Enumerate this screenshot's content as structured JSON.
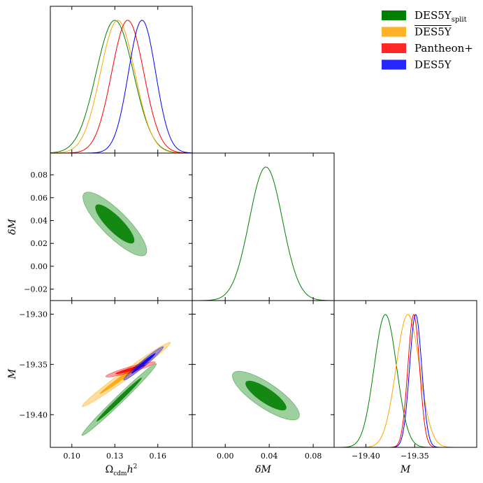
{
  "chart_data": {
    "type": "corner",
    "parameters": [
      {
        "key": "om",
        "label": "Ω_cdm h²",
        "range": [
          0.085,
          0.184
        ],
        "ticks": [
          0.1,
          0.13,
          0.16
        ],
        "tick_labels": [
          "0.10",
          "0.13",
          "0.16"
        ]
      },
      {
        "key": "dm",
        "label": "δM",
        "range": [
          -0.03,
          0.099
        ],
        "ticks": [
          -0.02,
          0.0,
          0.02,
          0.04,
          0.06,
          0.08
        ],
        "tick_labels_y": [
          "−0.02",
          "0.00",
          "0.02",
          "0.04",
          "0.06",
          "0.08"
        ],
        "ticks_x": [
          0.0,
          0.04,
          0.08
        ],
        "tick_labels_x": [
          "0.00",
          "0.04",
          "0.08"
        ]
      },
      {
        "key": "M",
        "label": "M",
        "range": [
          -19.4325,
          -19.2865
        ],
        "ticks": [
          -19.3,
          -19.35,
          -19.4
        ],
        "tick_labels_y": [
          "−19.30",
          "−19.35",
          "−19.40"
        ],
        "ticks_x": [
          -19.4,
          -19.35
        ],
        "tick_labels_x": [
          "−19.40",
          "−19.35"
        ]
      }
    ],
    "legend": {
      "placement": "top-right",
      "entries": [
        {
          "name": "DES5Y",
          "subscript": "split",
          "overline": false,
          "color": "#008000"
        },
        {
          "name": "DES5Y",
          "subscript": "",
          "overline": true,
          "color": "#FFA500"
        },
        {
          "name": "Pantheon+",
          "subscript": "",
          "overline": false,
          "color": "#FF0000"
        },
        {
          "name": "DES5Y",
          "subscript": "",
          "overline": false,
          "color": "#0000FF"
        }
      ]
    },
    "series": [
      {
        "name": "DES5Y_split",
        "color": "#008000",
        "om_1d": {
          "mean": 0.13,
          "sigma": 0.013
        },
        "dm_1d": {
          "mean": 0.037,
          "sigma": 0.015
        },
        "M_1d": {
          "mean": -19.38,
          "sigma": 0.0115
        },
        "om_dm": {
          "center": [
            0.13,
            0.037
          ],
          "inner_half_axes": [
            0.0185,
            0.0068
          ],
          "outer_half_axes": [
            0.0302,
            0.0112
          ],
          "angle_deg": -45
        },
        "om_M": {
          "center": [
            0.133,
            -19.385
          ],
          "inner_half_axes": [
            0.022,
            0.0022
          ],
          "outer_half_axes": [
            0.036,
            0.0038
          ],
          "angle_deg": 44
        },
        "dm_M": {
          "center": [
            0.037,
            -19.381
          ],
          "inner_half_axes": [
            0.022,
            0.0072
          ],
          "outer_half_axes": [
            0.036,
            0.0122
          ],
          "angle_deg": -34
        }
      },
      {
        "name": "DES5Y (overline)",
        "color": "#FFA500",
        "om_1d": {
          "mean": 0.132,
          "sigma": 0.012
        },
        "M_1d": {
          "mean": -19.357,
          "sigma": 0.012
        },
        "om_M": {
          "center": [
            0.138,
            -19.36
          ],
          "inner_half_axes": [
            0.023,
            0.002
          ],
          "outer_half_axes": [
            0.038,
            0.0042
          ],
          "angle_deg": 36
        }
      },
      {
        "name": "Pantheon+",
        "color": "#FF0000",
        "om_1d": {
          "mean": 0.139,
          "sigma": 0.0112
        },
        "M_1d": {
          "mean": -19.351,
          "sigma": 0.006
        },
        "om_M": {
          "center": [
            0.141,
            -19.355
          ],
          "inner_half_axes": [
            0.011,
            0.0015
          ],
          "outer_half_axes": [
            0.018,
            0.0028
          ],
          "angle_deg": 16
        }
      },
      {
        "name": "DES5Y",
        "color": "#0000FF",
        "om_1d": {
          "mean": 0.149,
          "sigma": 0.0095
        },
        "M_1d": {
          "mean": -19.349,
          "sigma": 0.0062
        },
        "om_M": {
          "center": [
            0.15,
            -19.349
          ],
          "inner_half_axes": [
            0.011,
            0.0016
          ],
          "outer_half_axes": [
            0.018,
            0.0028
          ],
          "angle_deg": 40
        }
      }
    ]
  }
}
